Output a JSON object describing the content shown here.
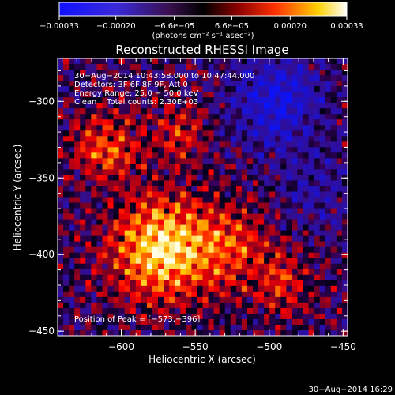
{
  "chart_data": {
    "type": "heatmap",
    "title": "Reconstructed RHESSI Image",
    "xlabel": "Heliocentric X (arcsec)",
    "ylabel": "Heliocentric Y (arcsec)",
    "xlim": [
      -643,
      -447
    ],
    "ylim": [
      -453,
      -272
    ],
    "x_ticks": [
      -600,
      -550,
      -500,
      -450
    ],
    "x_tick_labels": [
      "−600",
      "−550",
      "−500",
      "−450"
    ],
    "y_ticks": [
      -450,
      -400,
      -350,
      -300
    ],
    "y_tick_labels": [
      "−450",
      "−400",
      "−350",
      "−300"
    ],
    "colorbar": {
      "range": [
        -0.00033,
        0.00033
      ],
      "ticks": [
        -0.00033,
        -0.0002,
        -6.6e-05,
        6.6e-05,
        0.0002,
        0.00033
      ],
      "tick_labels": [
        "−0.00033",
        "−0.00020",
        "−6.6e−05",
        "6.6e−05",
        "0.00020",
        "0.00033"
      ],
      "units_label": "(photons cm⁻² s⁻¹ asec⁻²)"
    },
    "annotations": [
      "30−Aug−2014 10:43:58.000 to 10:47:44.000",
      "Detectors: 3F 6F 8F 9F, Att 0",
      "Energy Range: 25.0 − 50.0 keV",
      "Clean    Total counts: 2.30E+03"
    ],
    "peak_label": "Position of Peak = [−573,−396]",
    "peak": [
      -573,
      -396
    ]
  },
  "footer": {
    "timestamp": "30−Aug−2014 16:29"
  }
}
